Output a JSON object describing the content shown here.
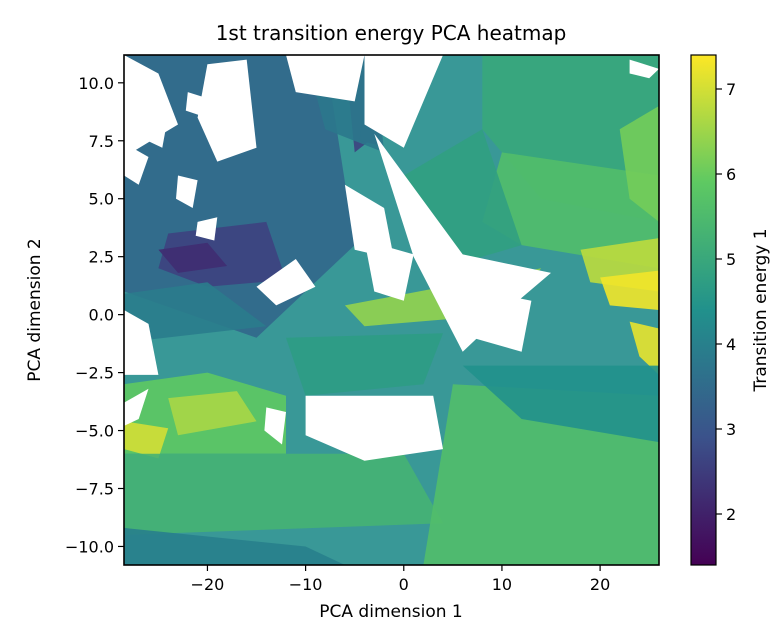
{
  "chart_data": {
    "type": "heatmap",
    "title": "1st transition energy PCA heatmap",
    "xlabel": "PCA dimension 1",
    "ylabel": "PCA dimension 2",
    "xlim": [
      -28.5,
      26
    ],
    "ylim": [
      -10.8,
      11.2
    ],
    "xticks": [
      {
        "value": -20,
        "label": "−20"
      },
      {
        "value": -10,
        "label": "−10"
      },
      {
        "value": 0,
        "label": "0"
      },
      {
        "value": 10,
        "label": "10"
      },
      {
        "value": 20,
        "label": "20"
      }
    ],
    "yticks": [
      {
        "value": 10,
        "label": "10.0"
      },
      {
        "value": 7.5,
        "label": "7.5"
      },
      {
        "value": 5,
        "label": "5.0"
      },
      {
        "value": 2.5,
        "label": "2.5"
      },
      {
        "value": 0,
        "label": "0.0"
      },
      {
        "value": -2.5,
        "label": "−2.5"
      },
      {
        "value": -5,
        "label": "−5.0"
      },
      {
        "value": -7.5,
        "label": "−7.5"
      },
      {
        "value": -10,
        "label": "−10.0"
      }
    ],
    "colorbar": {
      "label": "Transition energy 1",
      "range": [
        1.4,
        7.4
      ],
      "colormap": [
        "#440154",
        "#3b528b",
        "#21918c",
        "#5ec962",
        "#fde725"
      ],
      "ticks": [
        {
          "value": 2,
          "label": "2"
        },
        {
          "value": 3,
          "label": "3"
        },
        {
          "value": 4,
          "label": "4"
        },
        {
          "value": 5,
          "label": "5"
        },
        {
          "value": 6,
          "label": "6"
        },
        {
          "value": 7,
          "label": "7"
        }
      ]
    },
    "regions": [
      {
        "value": 4.3,
        "points": [
          [
            -28.5,
            -10.8
          ],
          [
            26,
            -10.8
          ],
          [
            26,
            11.2
          ],
          [
            -28.5,
            11.2
          ]
        ]
      },
      {
        "value": 3.4,
        "points": [
          [
            -28.5,
            11.2
          ],
          [
            -8,
            11.2
          ],
          [
            -5,
            3
          ],
          [
            -15,
            -1
          ],
          [
            -28.5,
            1
          ]
        ]
      },
      {
        "value": 2.6,
        "points": [
          [
            -24,
            3.5
          ],
          [
            -14,
            4
          ],
          [
            -12,
            1.5
          ],
          [
            -20,
            1.2
          ],
          [
            -25,
            2
          ]
        ]
      },
      {
        "value": 2.2,
        "points": [
          [
            -25,
            2.8
          ],
          [
            -20,
            3.1
          ],
          [
            -18,
            2.1
          ],
          [
            -23,
            1.8
          ]
        ]
      },
      {
        "value": 2.6,
        "points": [
          [
            -6,
            11.2
          ],
          [
            -3,
            11.2
          ],
          [
            -2,
            8
          ],
          [
            -5,
            7
          ]
        ]
      },
      {
        "value": 2.8,
        "points": [
          [
            -4,
            9
          ],
          [
            -2,
            9.2
          ],
          [
            -2.5,
            7.3
          ],
          [
            -4.5,
            7.5
          ]
        ]
      },
      {
        "value": 3.8,
        "points": [
          [
            -10,
            11.2
          ],
          [
            -3,
            11.2
          ],
          [
            -2,
            7
          ],
          [
            -8,
            8
          ]
        ]
      },
      {
        "value": 5.0,
        "points": [
          [
            8,
            11.2
          ],
          [
            26,
            11.2
          ],
          [
            26,
            4
          ],
          [
            14,
            5
          ],
          [
            8,
            8
          ]
        ]
      },
      {
        "value": 5.6,
        "points": [
          [
            10,
            7
          ],
          [
            26,
            6
          ],
          [
            26,
            2
          ],
          [
            12,
            3
          ],
          [
            8,
            4
          ]
        ]
      },
      {
        "value": 6.1,
        "points": [
          [
            22,
            8
          ],
          [
            26,
            9
          ],
          [
            26,
            4
          ],
          [
            23,
            5
          ]
        ]
      },
      {
        "value": 6.8,
        "points": [
          [
            18,
            2.8
          ],
          [
            26,
            3.3
          ],
          [
            26,
            1
          ],
          [
            19,
            1.4
          ]
        ]
      },
      {
        "value": 7.3,
        "points": [
          [
            20,
            1.6
          ],
          [
            26,
            1.9
          ],
          [
            26,
            0.2
          ],
          [
            21,
            0.4
          ]
        ]
      },
      {
        "value": 7.2,
        "points": [
          [
            23,
            -0.3
          ],
          [
            26,
            -0.6
          ],
          [
            26,
            -2.6
          ],
          [
            24,
            -1.8
          ]
        ]
      },
      {
        "value": 6.4,
        "points": [
          [
            -6,
            0.4
          ],
          [
            14,
            2
          ],
          [
            10,
            0
          ],
          [
            -4,
            -0.5
          ]
        ]
      },
      {
        "value": 5.9,
        "points": [
          [
            -28.5,
            -3
          ],
          [
            -20,
            -2.5
          ],
          [
            -12,
            -3.5
          ],
          [
            -12,
            -6
          ],
          [
            -28.5,
            -6
          ]
        ]
      },
      {
        "value": 6.6,
        "points": [
          [
            -24,
            -3.6
          ],
          [
            -17,
            -3.3
          ],
          [
            -15,
            -4.6
          ],
          [
            -23,
            -5.2
          ]
        ]
      },
      {
        "value": 7.0,
        "points": [
          [
            -28.5,
            -4.6
          ],
          [
            -24,
            -4.9
          ],
          [
            -25,
            -6.2
          ],
          [
            -28.5,
            -5.8
          ]
        ]
      },
      {
        "value": 5.3,
        "points": [
          [
            -28.5,
            -6
          ],
          [
            0,
            -6
          ],
          [
            4,
            -9
          ],
          [
            -28.5,
            -9.5
          ]
        ]
      },
      {
        "value": 5.6,
        "points": [
          [
            5,
            -3
          ],
          [
            26,
            -3.5
          ],
          [
            26,
            -10.8
          ],
          [
            2,
            -10.8
          ]
        ]
      },
      {
        "value": 4.0,
        "points": [
          [
            -28.5,
            -9.2
          ],
          [
            -10,
            -10
          ],
          [
            -6,
            -10.8
          ],
          [
            -28.5,
            -10.8
          ]
        ]
      },
      {
        "value": 4.4,
        "points": [
          [
            6,
            -2.2
          ],
          [
            26,
            -2.2
          ],
          [
            26,
            -5.5
          ],
          [
            12,
            -4.5
          ]
        ]
      },
      {
        "value": 4.8,
        "points": [
          [
            0,
            6
          ],
          [
            8,
            8
          ],
          [
            12,
            3
          ],
          [
            4,
            2
          ]
        ]
      },
      {
        "value": 3.9,
        "points": [
          [
            -28.5,
            0.9
          ],
          [
            -20,
            1.4
          ],
          [
            -14,
            -0.5
          ],
          [
            -28.5,
            -1.2
          ]
        ]
      },
      {
        "value": 4.7,
        "points": [
          [
            -12,
            -1
          ],
          [
            4,
            -0.8
          ],
          [
            2,
            -3
          ],
          [
            -10,
            -3.5
          ]
        ]
      }
    ],
    "masked_regions": [
      [
        [
          -3,
          7.8
        ],
        [
          6,
          2.6
        ],
        [
          15,
          1.8
        ],
        [
          10,
          0
        ],
        [
          6,
          -1.6
        ],
        [
          1,
          2.5
        ]
      ],
      [
        [
          -4,
          11.2
        ],
        [
          4,
          11.2
        ],
        [
          0,
          7.2
        ],
        [
          -4,
          8.2
        ]
      ],
      [
        [
          -12,
          11.2
        ],
        [
          -4,
          11.2
        ],
        [
          -5,
          9.2
        ],
        [
          -11,
          9.6
        ]
      ],
      [
        [
          -20,
          10.8
        ],
        [
          -16,
          11
        ],
        [
          -15,
          7.2
        ],
        [
          -19,
          6.6
        ],
        [
          -21,
          8.5
        ]
      ],
      [
        [
          -28.5,
          11.2
        ],
        [
          -25,
          10.4
        ],
        [
          -23,
          8.2
        ],
        [
          -28.5,
          6.8
        ]
      ],
      [
        [
          -26,
          8.8
        ],
        [
          -24,
          8.6
        ],
        [
          -24.6,
          7.2
        ],
        [
          -26.6,
          7.6
        ]
      ],
      [
        [
          -10,
          -3.5
        ],
        [
          3,
          -3.5
        ],
        [
          4,
          -5.8
        ],
        [
          -4,
          -6.3
        ],
        [
          -10,
          -5.2
        ]
      ],
      [
        [
          -15,
          1.2
        ],
        [
          -11,
          2.4
        ],
        [
          -9,
          1.2
        ],
        [
          -13,
          0.4
        ]
      ],
      [
        [
          -28.5,
          0.2
        ],
        [
          -26,
          -0.4
        ],
        [
          -25,
          -2.6
        ],
        [
          -28.5,
          -2.6
        ]
      ],
      [
        [
          -28.5,
          -3.8
        ],
        [
          -26,
          -3.2
        ],
        [
          -27,
          -4.5
        ],
        [
          -28.5,
          -4.8
        ]
      ],
      [
        [
          -23,
          6
        ],
        [
          -21,
          5.8
        ],
        [
          -21.5,
          4.6
        ],
        [
          -23.2,
          5
        ]
      ],
      [
        [
          -21,
          4
        ],
        [
          -19,
          4.2
        ],
        [
          -19.3,
          3.2
        ],
        [
          -21.2,
          3.4
        ]
      ],
      [
        [
          -6,
          5.6
        ],
        [
          -2,
          4.6
        ],
        [
          -1,
          2.4
        ],
        [
          -5,
          2.8
        ]
      ],
      [
        [
          6,
          1.2
        ],
        [
          13,
          0.6
        ],
        [
          12,
          -1.6
        ],
        [
          7,
          -1
        ]
      ],
      [
        [
          -14,
          -4
        ],
        [
          -12,
          -4.2
        ],
        [
          -12.4,
          -5.6
        ],
        [
          -14.2,
          -5
        ]
      ],
      [
        [
          -4,
          3.2
        ],
        [
          1,
          2.6
        ],
        [
          0,
          0.6
        ],
        [
          -3,
          1
        ]
      ],
      [
        [
          0,
          11.2
        ],
        [
          3,
          11.2
        ],
        [
          2,
          9.4
        ],
        [
          0,
          9.8
        ]
      ],
      [
        [
          23,
          11
        ],
        [
          26,
          10.6
        ],
        [
          25,
          10.2
        ],
        [
          23,
          10.4
        ]
      ],
      [
        [
          -28.5,
          7.4
        ],
        [
          -26,
          6.8
        ],
        [
          -27,
          5.6
        ],
        [
          -28.5,
          6
        ]
      ],
      [
        [
          -22,
          9.6
        ],
        [
          -20.5,
          9.4
        ],
        [
          -20.8,
          8.6
        ],
        [
          -22.2,
          8.8
        ]
      ]
    ]
  }
}
